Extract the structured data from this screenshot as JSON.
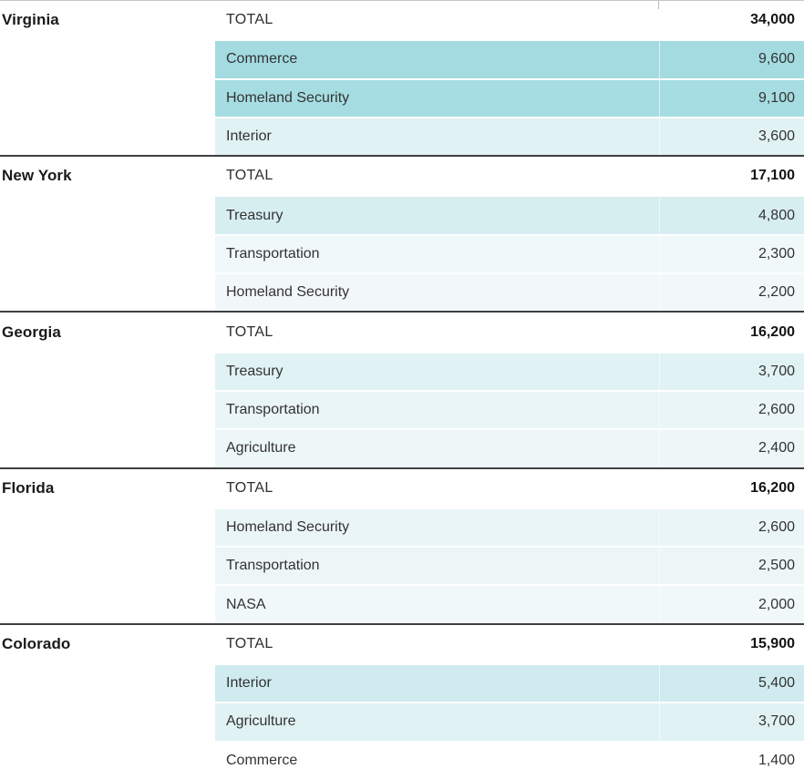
{
  "chart_data": {
    "type": "table",
    "description": "States with total figures and their top three departments; department cells shaded teal with intensity proportional to value",
    "total_label": "TOTAL",
    "value_encoding": "cell background teal intensity scales with value (max ~9,600 = medium teal, ~1,400 = white)",
    "colors": {
      "max_fill": "#a5dce2",
      "group_separator": "#404040",
      "top_border": "#c6c6c6",
      "state_text": "#1a1a1a",
      "body_text": "#333333"
    },
    "groups": [
      {
        "state": "Virginia",
        "total": 34000,
        "total_text": "34,000",
        "rows": [
          {
            "label": "Commerce",
            "value": 9600,
            "value_text": "9,600",
            "color": "#a3dbe1"
          },
          {
            "label": "Homeland Security",
            "value": 9100,
            "value_text": "9,100",
            "color": "#a6dde2"
          },
          {
            "label": "Interior",
            "value": 3600,
            "value_text": "3,600",
            "color": "#e1f2f4"
          }
        ]
      },
      {
        "state": "New York",
        "total": 17100,
        "total_text": "17,100",
        "rows": [
          {
            "label": "Treasury",
            "value": 4800,
            "value_text": "4,800",
            "color": "#d7eef1"
          },
          {
            "label": "Transportation",
            "value": 2300,
            "value_text": "2,300",
            "color": "#f0f8f9"
          },
          {
            "label": "Homeland Security",
            "value": 2200,
            "value_text": "2,200",
            "color": "#f2f8fa"
          }
        ]
      },
      {
        "state": "Georgia",
        "total": 16200,
        "total_text": "16,200",
        "rows": [
          {
            "label": "Treasury",
            "value": 3700,
            "value_text": "3,700",
            "color": "#e0f2f4"
          },
          {
            "label": "Transportation",
            "value": 2600,
            "value_text": "2,600",
            "color": "#eaf5f7"
          },
          {
            "label": "Agriculture",
            "value": 2400,
            "value_text": "2,400",
            "color": "#edf7f8"
          }
        ]
      },
      {
        "state": "Florida",
        "total": 16200,
        "total_text": "16,200",
        "rows": [
          {
            "label": "Homeland Security",
            "value": 2600,
            "value_text": "2,600",
            "color": "#eaf5f7"
          },
          {
            "label": "Transportation",
            "value": 2500,
            "value_text": "2,500",
            "color": "#ecf6f7"
          },
          {
            "label": "NASA",
            "value": 2000,
            "value_text": "2,000",
            "color": "#f1f8f9"
          }
        ]
      },
      {
        "state": "Colorado",
        "total": 15900,
        "total_text": "15,900",
        "rows": [
          {
            "label": "Interior",
            "value": 5400,
            "value_text": "5,400",
            "color": "#cfebef"
          },
          {
            "label": "Agriculture",
            "value": 3700,
            "value_text": "3,700",
            "color": "#e0f2f4"
          },
          {
            "label": "Commerce",
            "value": 1400,
            "value_text": "1,400",
            "color": "#ffffff"
          }
        ]
      }
    ]
  }
}
